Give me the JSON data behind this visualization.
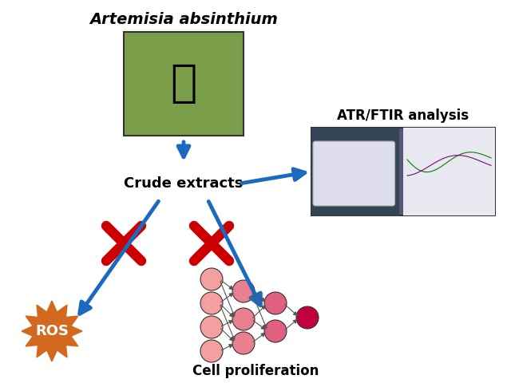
{
  "bg_color": "#ffffff",
  "title_text": "Artemisia absinthium",
  "crude_text": "Crude extracts",
  "ftir_text": "ATR/FTIR analysis",
  "ros_text": "ROS",
  "cell_text": "Cell proliferation",
  "arrow_color": "#1a6bbf",
  "cross_color": "#cc0000",
  "ros_bg_color": "#d2691e",
  "ros_text_color": "#ffffff",
  "cell_pink_light": "#f4a0a0",
  "cell_pink_dark": "#c0003c",
  "cell_outline": "#333333"
}
